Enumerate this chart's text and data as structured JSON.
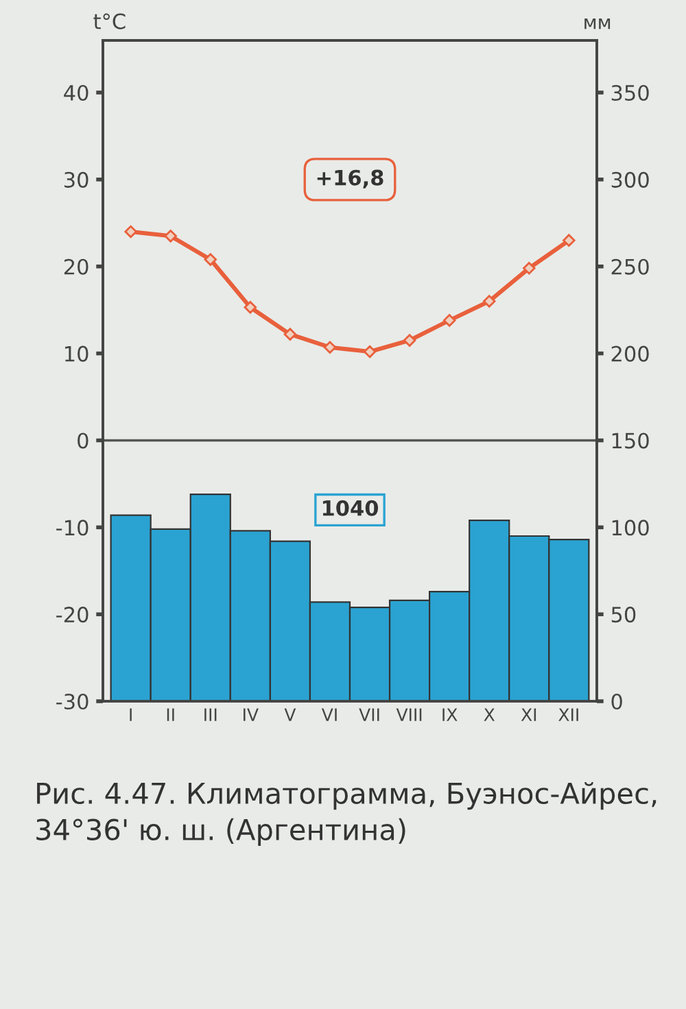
{
  "chart_data": {
    "type": "line",
    "ylabel": "t°C",
    "y2label": "мм",
    "categories": [
      "I",
      "II",
      "III",
      "IV",
      "V",
      "VI",
      "VII",
      "VIII",
      "IX",
      "X",
      "XI",
      "XII"
    ],
    "series": [
      {
        "type": "bar",
        "axis": "y2",
        "color": "#2aa3d2",
        "values": [
          107,
          99,
          119,
          98,
          92,
          57,
          54,
          58,
          63,
          104,
          95,
          93
        ]
      },
      {
        "axis": "y",
        "color": "#e8603c",
        "marker": "diamond",
        "values": [
          24,
          23.5,
          20.8,
          15.3,
          12.2,
          10.7,
          10.2,
          11.5,
          13.8,
          16,
          19.8,
          23
        ]
      }
    ],
    "ylim": [
      -30,
      46
    ],
    "yticks": [
      -30,
      -20,
      -10,
      0,
      10,
      20,
      30,
      40
    ],
    "y2lim": [
      0,
      380
    ],
    "y2ticks": [
      0,
      50,
      100,
      150,
      200,
      250,
      300,
      350
    ],
    "ref_lines": [
      {
        "axis": "y",
        "value": 0,
        "color": "#555555"
      }
    ],
    "annotations": [
      "+16,8",
      "1040",
      "Рис. 4.47. Климатограмма, Буэнос-Айрес, 34°36' ю. ш. (Аргентина)"
    ],
    "grid": false
  }
}
